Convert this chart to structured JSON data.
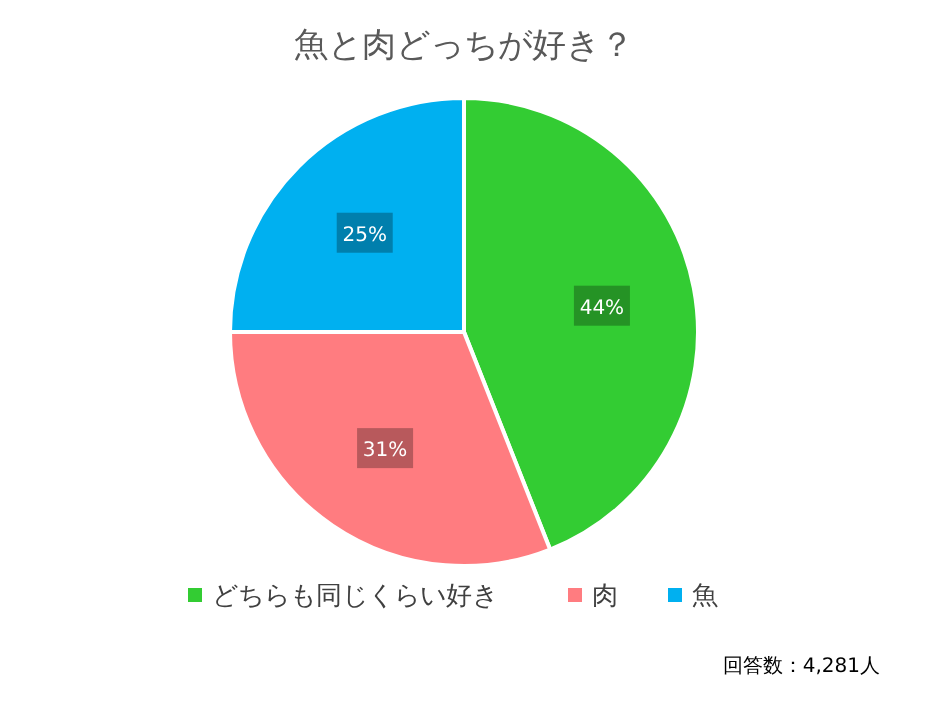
{
  "chart_data": {
    "type": "pie",
    "title": "魚と肉どっちが好き？",
    "categories": [
      "どちらも同じくらい好き",
      "肉",
      "魚"
    ],
    "values": [
      44,
      31,
      25
    ],
    "colors": [
      "#33cc33",
      "#ff7c80",
      "#00b0f0"
    ],
    "value_labels": [
      "44%",
      "31%",
      "25%"
    ],
    "legend": "bottom",
    "annotations": [
      "回答数：4,281人"
    ]
  }
}
